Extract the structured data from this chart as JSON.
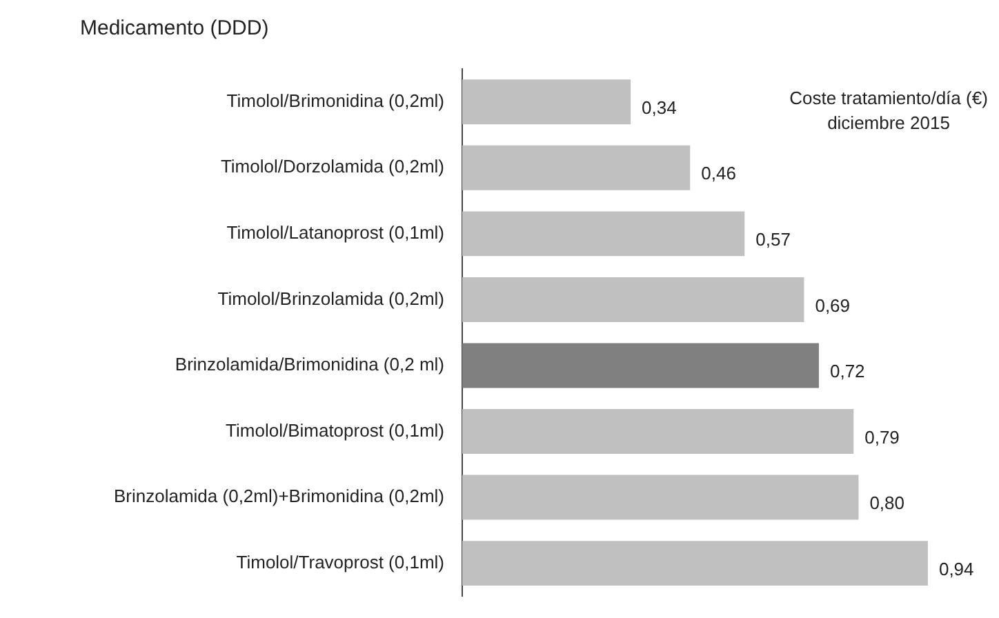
{
  "chart_data": {
    "type": "bar",
    "orientation": "horizontal",
    "ylabel": "Medicamento (DDD)",
    "annotations": [
      "Coste tratamiento/día (€)\ndiciembre 2015"
    ],
    "categories": [
      "Timolol/Brimonidina (0,2ml)",
      "Timolol/Dorzolamida (0,2ml)",
      "Timolol/Latanoprost (0,1ml)",
      "Timolol/Brinzolamida (0,2ml)",
      "Brinzolamida/Brimonidina (0,2 ml)",
      "Timolol/Bimatoprost (0,1ml)",
      "Brinzolamida (0,2ml)+Brimonidina (0,2ml)",
      "Timolol/Travoprost (0,1ml)"
    ],
    "values": [
      0.34,
      0.46,
      0.57,
      0.69,
      0.72,
      0.79,
      0.8,
      0.94
    ],
    "value_labels": [
      "0,34",
      "0,46",
      "0,57",
      "0,69",
      "0,72",
      "0,79",
      "0,80",
      "0,94"
    ],
    "colors": [
      "#c0c0c0",
      "#c0c0c0",
      "#c0c0c0",
      "#c0c0c0",
      "#808080",
      "#c0c0c0",
      "#c0c0c0",
      "#c0c0c0"
    ],
    "tick_labels": "y",
    "legend": false
  }
}
